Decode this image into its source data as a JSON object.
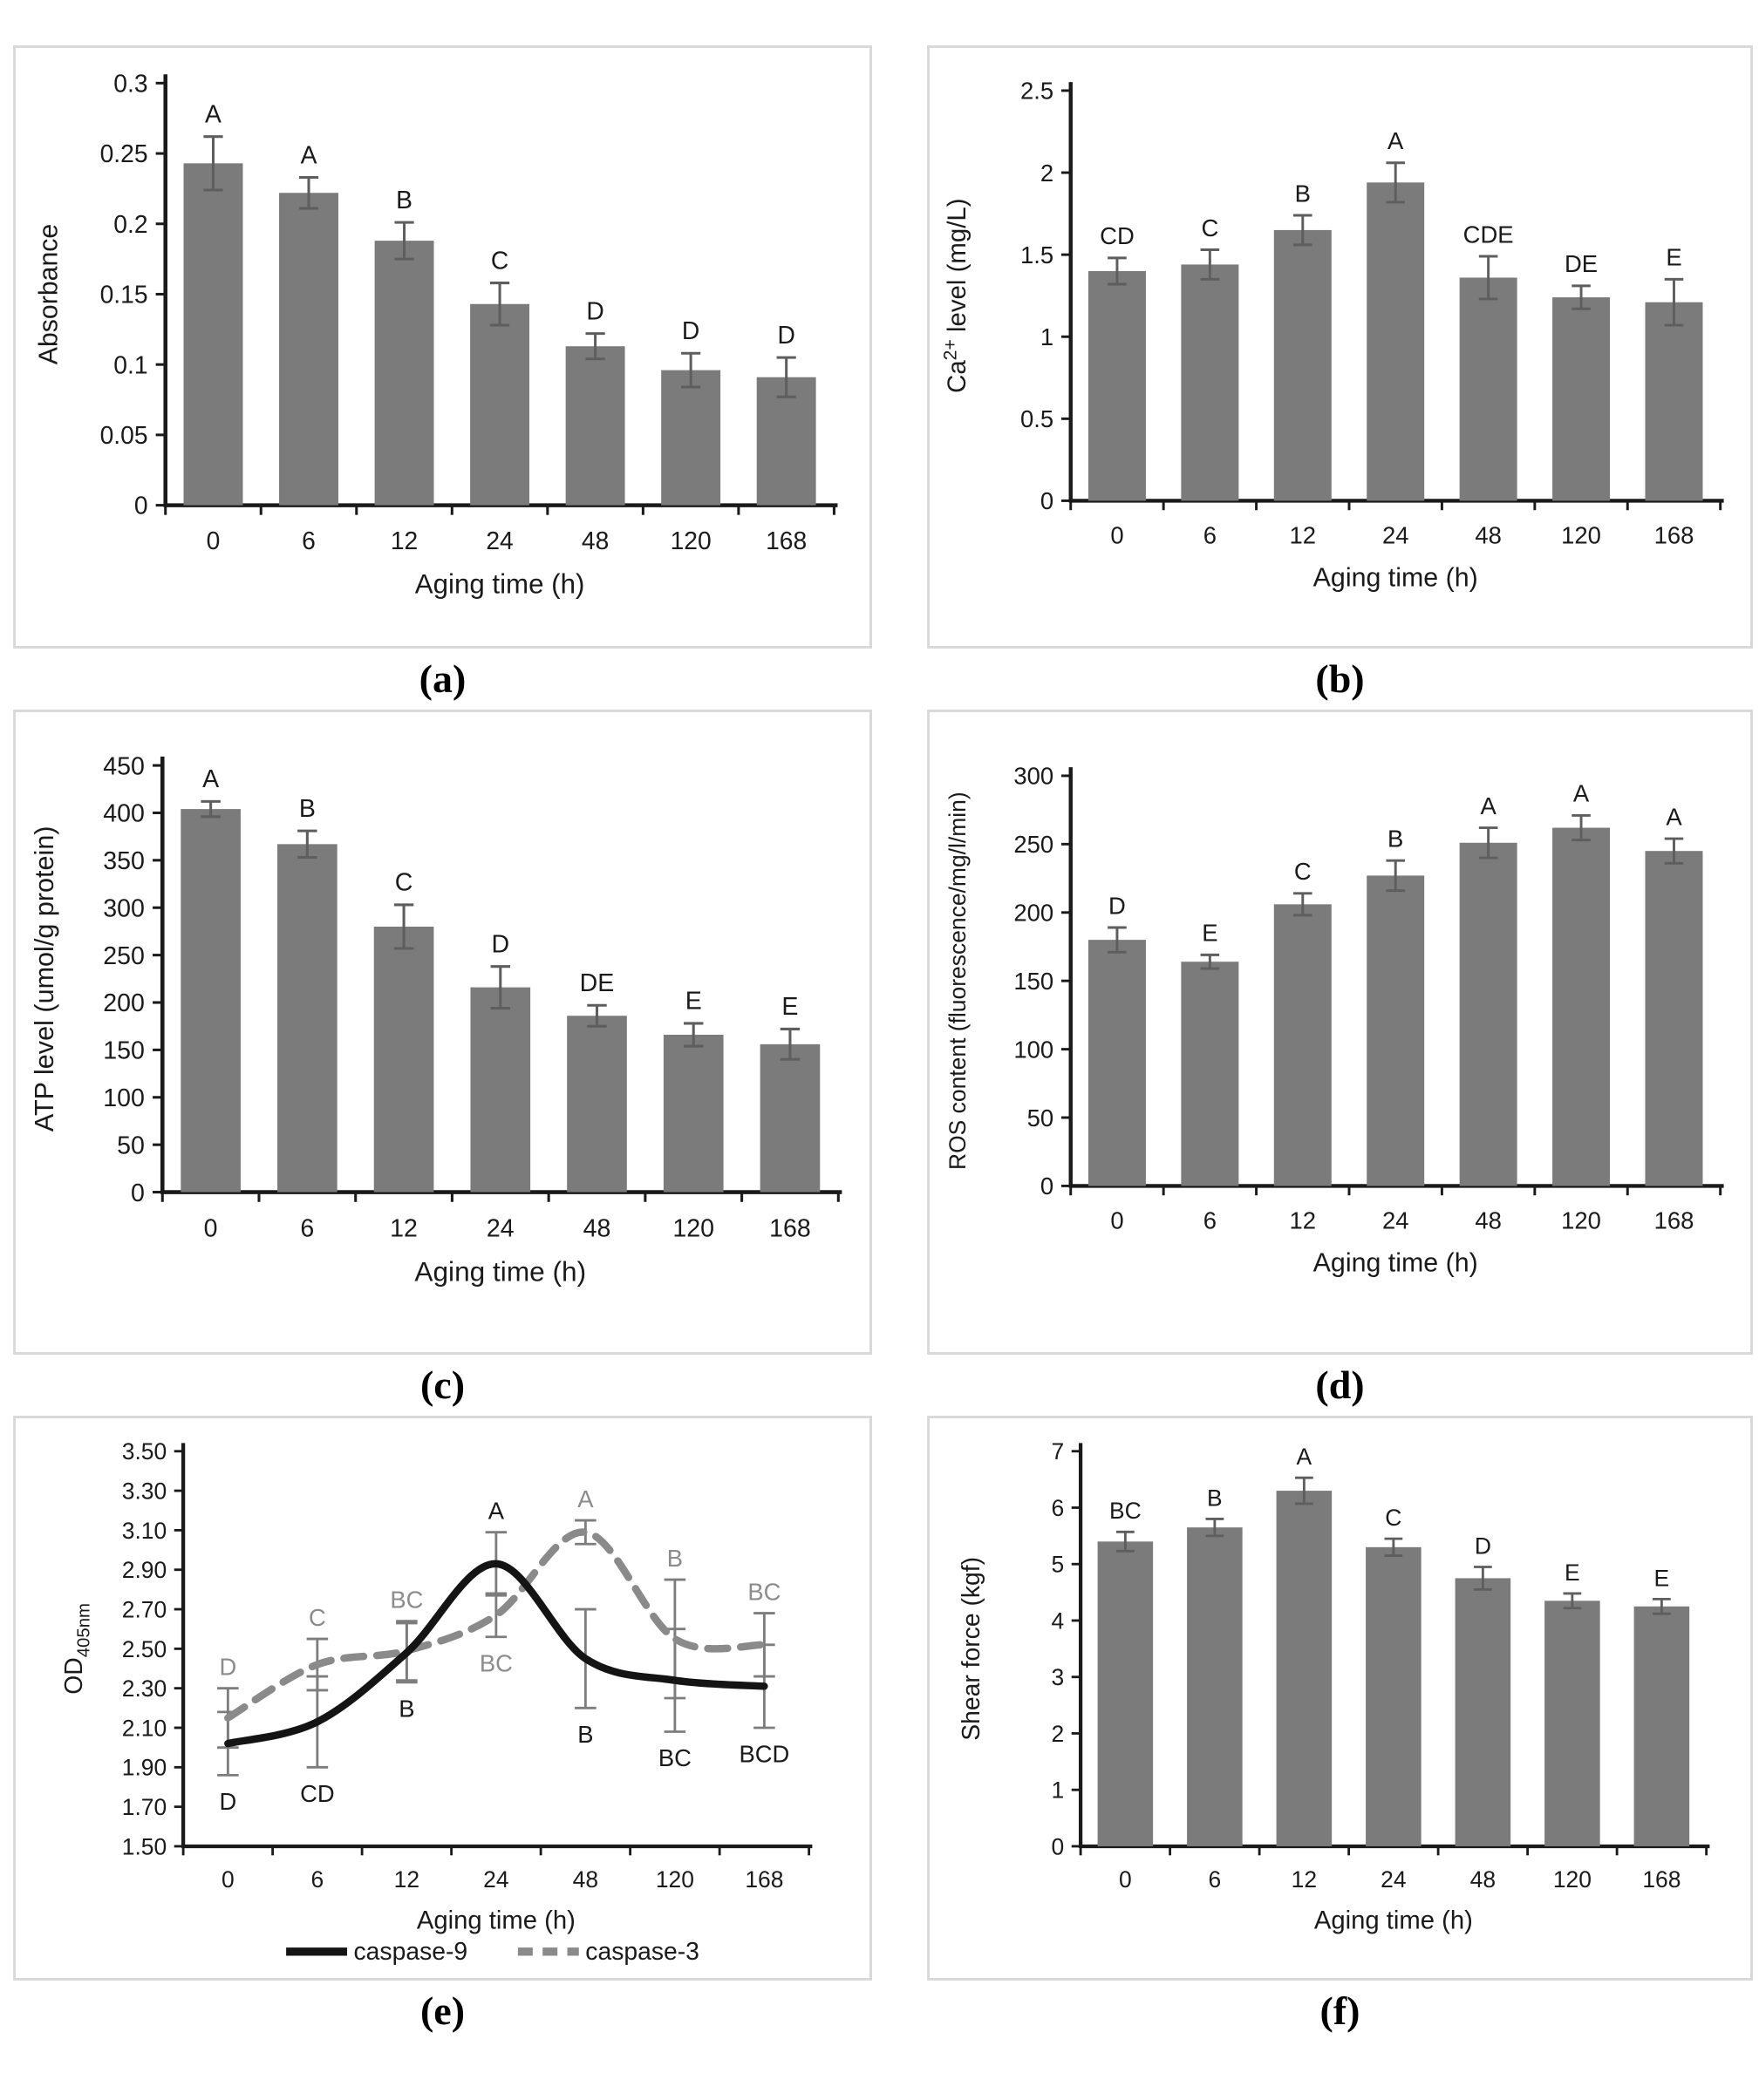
{
  "captions": {
    "a": "(a)",
    "b": "(b)",
    "c": "(c)",
    "d": "(d)",
    "e": "(e)",
    "f": "(f)"
  },
  "style": {
    "bar_color": "#7b7b7b",
    "error_color": "#5e5e5e",
    "line_error_color": "#7d7d7d",
    "axis_color": "#1a1a1a",
    "text_color": "#1a1a1a",
    "panel_border": "#d9d9d9",
    "caspase9_color": "#141414",
    "caspase3_color": "#8a8a8a",
    "gray_letter_color": "#8c8c8c"
  },
  "chart_data": [
    {
      "id": "a",
      "type": "bar",
      "xlabel": "Aging time (h)",
      "ylabel_parts": [
        {
          "t": "Absorbance"
        }
      ],
      "categories": [
        "0",
        "6",
        "12",
        "24",
        "48",
        "120",
        "168"
      ],
      "values": [
        0.243,
        0.222,
        0.188,
        0.143,
        0.113,
        0.096,
        0.091
      ],
      "errors": [
        0.019,
        0.011,
        0.013,
        0.015,
        0.009,
        0.012,
        0.014
      ],
      "sig_letters": [
        "A",
        "A",
        "B",
        "C",
        "D",
        "D",
        "D"
      ],
      "ylim": [
        0,
        0.3
      ],
      "ytick_labels": [
        "0",
        "0.05",
        "0.1",
        "0.15",
        "0.2",
        "0.25",
        "0.3"
      ],
      "grid": false,
      "legend_position": "none"
    },
    {
      "id": "b",
      "type": "bar",
      "xlabel": "Aging time (h)",
      "ylabel_parts": [
        {
          "t": "Ca"
        },
        {
          "t": "2+",
          "sup": true
        },
        {
          "t": " level (mg/L)"
        }
      ],
      "categories": [
        "0",
        "6",
        "12",
        "24",
        "48",
        "120",
        "168"
      ],
      "values": [
        1.4,
        1.44,
        1.65,
        1.94,
        1.36,
        1.24,
        1.21
      ],
      "errors": [
        0.08,
        0.09,
        0.09,
        0.12,
        0.13,
        0.07,
        0.14
      ],
      "sig_letters": [
        "CD",
        "C",
        "B",
        "A",
        "CDE",
        "DE",
        "E"
      ],
      "ylim": [
        0,
        2.5
      ],
      "ytick_labels": [
        "0",
        "0.5",
        "1",
        "1.5",
        "2",
        "2.5"
      ],
      "grid": false,
      "legend_position": "none"
    },
    {
      "id": "c",
      "type": "bar",
      "xlabel": "Aging time (h)",
      "ylabel_parts": [
        {
          "t": "ATP level (umol/g protein)"
        }
      ],
      "categories": [
        "0",
        "6",
        "12",
        "24",
        "48",
        "120",
        "168"
      ],
      "values": [
        404,
        367,
        280,
        216,
        186,
        166,
        156
      ],
      "errors": [
        8,
        14,
        23,
        22,
        11,
        12,
        16
      ],
      "sig_letters": [
        "A",
        "B",
        "C",
        "D",
        "DE",
        "E",
        "E"
      ],
      "ylim": [
        0,
        450
      ],
      "ytick_labels": [
        "0",
        "50",
        "100",
        "150",
        "200",
        "250",
        "300",
        "350",
        "400",
        "450"
      ],
      "grid": false,
      "legend_position": "none"
    },
    {
      "id": "d",
      "type": "bar",
      "xlabel": "Aging time (h)",
      "ylabel_parts": [
        {
          "t": "ROS content (fluorescence/mg/l/min)"
        }
      ],
      "categories": [
        "0",
        "6",
        "12",
        "24",
        "48",
        "120",
        "168"
      ],
      "values": [
        180,
        164,
        206,
        227,
        251,
        262,
        245
      ],
      "errors": [
        9,
        5,
        8,
        11,
        11,
        9,
        9
      ],
      "sig_letters": [
        "D",
        "E",
        "C",
        "B",
        "A",
        "A",
        "A"
      ],
      "ylim": [
        0,
        300
      ],
      "ytick_labels": [
        "0",
        "50",
        "100",
        "150",
        "200",
        "250",
        "300"
      ],
      "grid": false,
      "legend_position": "none"
    },
    {
      "id": "e",
      "type": "line",
      "xlabel": "Aging time (h)",
      "ylabel_parts": [
        {
          "t": "OD"
        },
        {
          "t": "405nm",
          "sub": true
        }
      ],
      "categories": [
        "0",
        "6",
        "12",
        "24",
        "48",
        "120",
        "168"
      ],
      "series": [
        {
          "name": "caspase-9",
          "color": "#141414",
          "dash": "",
          "letter_color": "#1a1a1a",
          "values": [
            2.02,
            2.13,
            2.48,
            2.93,
            2.45,
            2.34,
            2.31
          ],
          "errors": [
            0.16,
            0.23,
            0.15,
            0.16,
            0.25,
            0.26,
            0.21
          ],
          "letters": [
            {
              "t": "D",
              "pos": "below"
            },
            {
              "t": "CD",
              "pos": "below"
            },
            {
              "t": "B",
              "pos": "below"
            },
            {
              "t": "A",
              "pos": "above"
            },
            {
              "t": "B",
              "pos": "below"
            },
            {
              "t": "BC",
              "pos": "below"
            },
            {
              "t": "BCD",
              "pos": "below"
            }
          ]
        },
        {
          "name": "caspase-3",
          "color": "#8a8a8a",
          "dash": "24 16",
          "letter_color": "#8c8c8c",
          "values": [
            2.15,
            2.42,
            2.49,
            2.67,
            3.09,
            2.55,
            2.52
          ],
          "errors": [
            0.15,
            0.13,
            0.15,
            0.11,
            0.06,
            0.3,
            0.16
          ],
          "letters": [
            {
              "t": "D",
              "pos": "above"
            },
            {
              "t": "C",
              "pos": "above"
            },
            {
              "t": "BC",
              "pos": "above"
            },
            {
              "t": "BC",
              "pos": "below"
            },
            {
              "t": "A",
              "pos": "above"
            },
            {
              "t": "B",
              "pos": "above"
            },
            {
              "t": "BC",
              "pos": "above"
            }
          ]
        }
      ],
      "ylim": [
        1.5,
        3.5
      ],
      "ytick_labels": [
        "1.50",
        "1.70",
        "1.90",
        "2.10",
        "2.30",
        "2.50",
        "2.70",
        "2.90",
        "3.10",
        "3.30",
        "3.50"
      ],
      "grid": false,
      "legend_position": "bottom"
    },
    {
      "id": "f",
      "type": "bar",
      "xlabel": "Aging time (h)",
      "ylabel_parts": [
        {
          "t": "Shear force (kgf)"
        }
      ],
      "categories": [
        "0",
        "6",
        "12",
        "24",
        "48",
        "120",
        "168"
      ],
      "values": [
        5.4,
        5.65,
        6.3,
        5.3,
        4.75,
        4.35,
        4.25
      ],
      "errors": [
        0.17,
        0.15,
        0.23,
        0.15,
        0.2,
        0.13,
        0.13
      ],
      "sig_letters": [
        "BC",
        "B",
        "A",
        "C",
        "D",
        "E",
        "E"
      ],
      "ylim": [
        0,
        7
      ],
      "ytick_labels": [
        "0",
        "1",
        "2",
        "3",
        "4",
        "5",
        "6",
        "7"
      ],
      "grid": false,
      "legend_position": "none"
    }
  ]
}
